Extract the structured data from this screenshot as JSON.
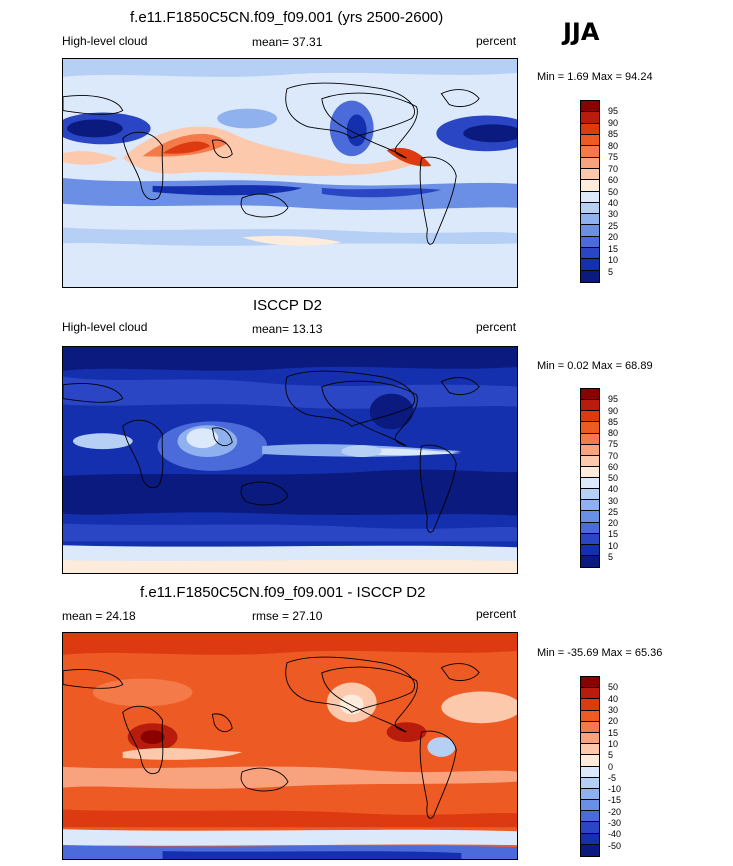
{
  "season": "JJA",
  "panels": [
    {
      "title": "f.e11.F1850C5CN.f09_f09.001 (yrs 2500-2600)",
      "left_label": "High-level cloud",
      "center_label": "mean=  37.31",
      "right_label": "percent",
      "minmax": "Min =   1.69 Max =  94.24",
      "colorbar": {
        "labels": [
          "95",
          "90",
          "85",
          "80",
          "75",
          "70",
          "60",
          "50",
          "40",
          "30",
          "25",
          "20",
          "15",
          "10",
          "5"
        ],
        "colors": [
          "#8b0000",
          "#b71c0c",
          "#dd3a12",
          "#ee5a24",
          "#f57a4a",
          "#f9a27e",
          "#fcc9ad",
          "#fdebdc",
          "#dce9fb",
          "#b5cff5",
          "#8fb1ee",
          "#6a8fe4",
          "#4a6bd9",
          "#2a46c4",
          "#1530ae",
          "#0b1a7e"
        ]
      }
    },
    {
      "title": "ISCCP D2",
      "left_label": "High-level cloud",
      "center_label": "mean=  13.13",
      "right_label": "percent",
      "minmax": "Min =   0.02 Max =  68.89",
      "colorbar": {
        "labels": [
          "95",
          "90",
          "85",
          "80",
          "75",
          "70",
          "60",
          "50",
          "40",
          "30",
          "25",
          "20",
          "15",
          "10",
          "5"
        ],
        "colors": [
          "#8b0000",
          "#b71c0c",
          "#dd3a12",
          "#ee5a24",
          "#f57a4a",
          "#f9a27e",
          "#fcc9ad",
          "#fdebdc",
          "#dce9fb",
          "#b5cff5",
          "#8fb1ee",
          "#6a8fe4",
          "#4a6bd9",
          "#2a46c4",
          "#1530ae",
          "#0b1a7e"
        ]
      }
    },
    {
      "title": "f.e11.F1850C5CN.f09_f09.001 - ISCCP D2",
      "left_label": "mean =  24.18",
      "center_label": "rmse =  27.10",
      "right_label": "percent",
      "minmax": "Min = -35.69 Max =  65.36",
      "colorbar": {
        "labels": [
          "50",
          "40",
          "30",
          "20",
          "15",
          "10",
          "5",
          "0",
          "-5",
          "-10",
          "-15",
          "-20",
          "-30",
          "-40",
          "-50"
        ],
        "colors": [
          "#8b0000",
          "#b71c0c",
          "#dd3a12",
          "#ee5a24",
          "#f57a4a",
          "#f9a27e",
          "#fcc9ad",
          "#fdebdc",
          "#dce9fb",
          "#b5cff5",
          "#8fb1ee",
          "#6a8fe4",
          "#4a6bd9",
          "#2a46c4",
          "#1530ae",
          "#0b1a7e"
        ]
      }
    }
  ]
}
